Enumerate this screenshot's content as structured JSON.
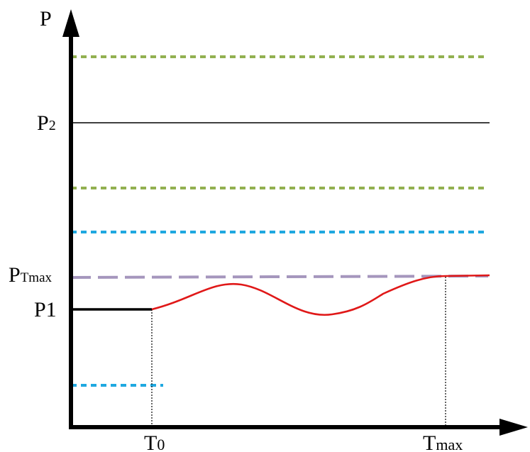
{
  "labels": {
    "y_axis": "P",
    "p2_main": "P",
    "p2_sub": "2",
    "ptmax_main": "P",
    "ptmax_sub": "Tmax",
    "p1": "P1",
    "t0_main": "T",
    "t0_sub": "0",
    "tmax_main": "T",
    "tmax_sub": "max"
  },
  "colors": {
    "axis": "#000000",
    "green_dotted": "#92b050",
    "blue_dotted": "#1fa8e0",
    "purple_dashed": "#a596bd",
    "curve": "#e01818",
    "p1_line": "#000000"
  }
}
